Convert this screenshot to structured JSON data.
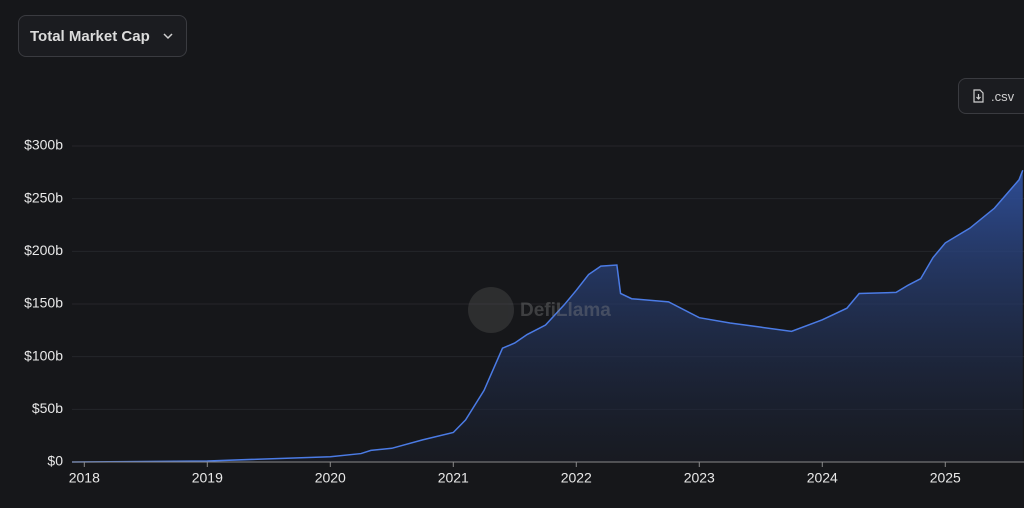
{
  "header": {
    "dropdown": "Total Market Cap",
    "csv": ".csv"
  },
  "chart_data": {
    "type": "area",
    "watermark": "DefiLlama",
    "color": "#4b7be5",
    "x": [
      2017.9,
      2019,
      2020,
      2020.25,
      2020.33,
      2020.5,
      2020.75,
      2021,
      2021.1,
      2021.25,
      2021.4,
      2021.5,
      2021.6,
      2021.75,
      2021.9,
      2022,
      2022.1,
      2022.2,
      2022.33,
      2022.36,
      2022.45,
      2022.75,
      2023,
      2023.25,
      2023.5,
      2023.75,
      2024,
      2024.2,
      2024.3,
      2024.6,
      2024.7,
      2024.8,
      2024.9,
      2025,
      2025.2,
      2025.4,
      2025.6,
      2025.63
    ],
    "values": [
      0,
      1,
      5,
      8,
      11,
      13,
      21,
      28,
      40,
      68,
      108,
      113,
      121,
      130,
      149,
      163,
      178,
      186,
      187,
      160,
      155,
      152,
      137,
      132,
      128,
      124,
      135,
      146,
      160,
      161,
      168,
      174,
      194,
      208,
      222,
      241,
      268,
      277
    ],
    "xlim": [
      2017.9,
      2025.64
    ],
    "ylim": [
      0,
      300
    ],
    "xticks": [
      2018,
      2019,
      2020,
      2021,
      2022,
      2023,
      2024,
      2025
    ],
    "yticks": [
      {
        "value": 0,
        "label": "$0"
      },
      {
        "value": 50,
        "label": "$50b"
      },
      {
        "value": 100,
        "label": "$100b"
      },
      {
        "value": 150,
        "label": "$150b"
      },
      {
        "value": 200,
        "label": "$200b"
      },
      {
        "value": 250,
        "label": "$250b"
      },
      {
        "value": 300,
        "label": "$300b"
      }
    ],
    "grid": true
  }
}
